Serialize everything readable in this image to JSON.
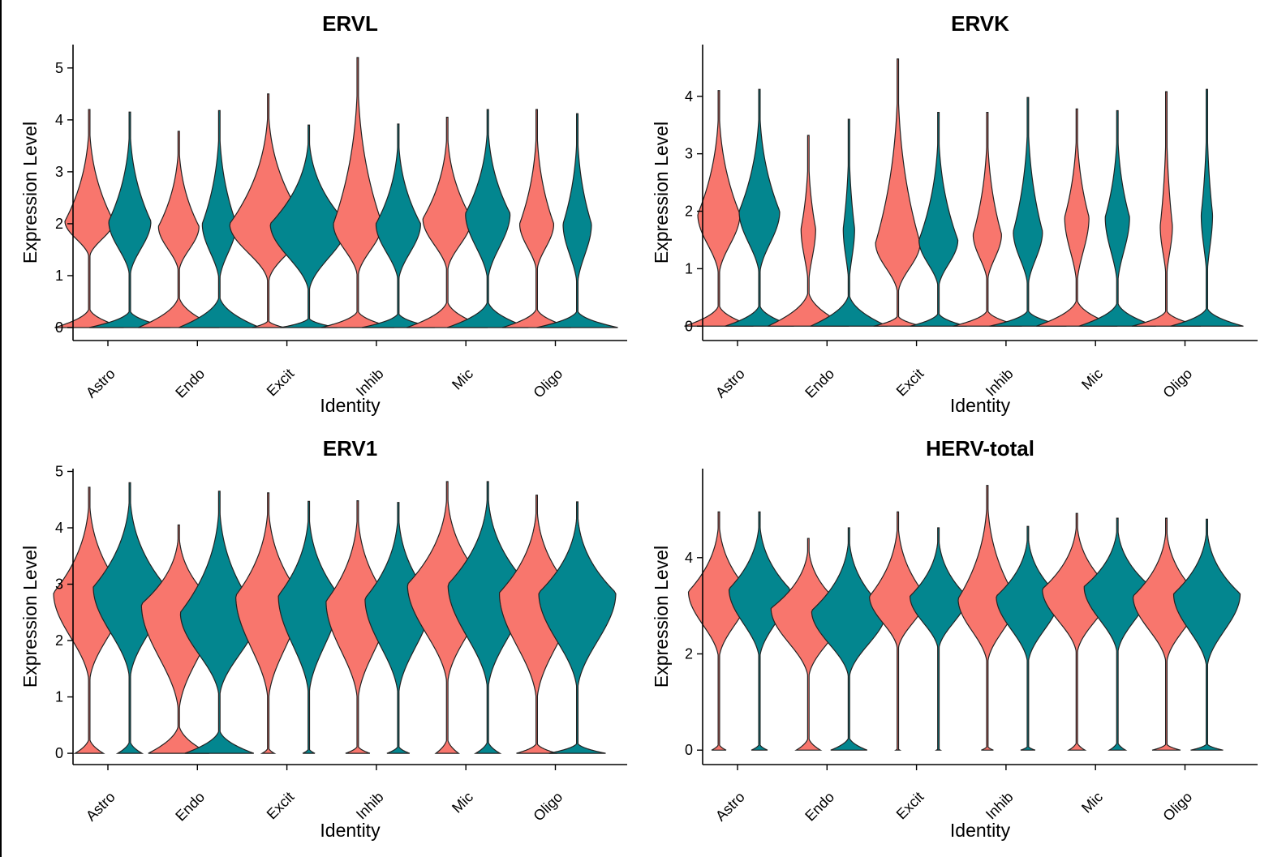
{
  "colors": {
    "group1": "#F8766D",
    "group2": "#03868F",
    "outline": "#222222"
  },
  "chart_data": [
    {
      "type": "violin",
      "title": "ERVL",
      "xlabel": "Identity",
      "ylabel": "Expression Level",
      "categories": [
        "Astro",
        "Endo",
        "Excit",
        "Inhib",
        "Mic",
        "Oligo"
      ],
      "ylim": [
        -0.25,
        5.45
      ],
      "yticks": [
        0,
        1,
        2,
        3,
        4,
        5
      ],
      "series": [
        {
          "name": "group1",
          "color": "#F8766D",
          "violins": [
            {
              "max": 4.2,
              "upperLow": 1.3,
              "mode": 2.05,
              "upperWidth": 0.6,
              "zeroWidth": 0.85,
              "zeroTop": 0.4
            },
            {
              "max": 3.78,
              "upperLow": 1.0,
              "mode": 1.95,
              "upperWidth": 0.5,
              "zeroWidth": 1.0,
              "zeroTop": 0.65
            },
            {
              "max": 4.5,
              "upperLow": 0.8,
              "mode": 2.0,
              "upperWidth": 0.95,
              "zeroWidth": 0.4,
              "zeroTop": 0.15
            },
            {
              "max": 5.2,
              "upperLow": 0.9,
              "mode": 2.0,
              "upperWidth": 0.6,
              "zeroWidth": 0.9,
              "zeroTop": 0.35
            },
            {
              "max": 4.05,
              "upperLow": 1.0,
              "mode": 2.1,
              "upperWidth": 0.6,
              "zeroWidth": 1.0,
              "zeroTop": 0.55
            },
            {
              "max": 4.2,
              "upperLow": 1.0,
              "mode": 2.0,
              "upperWidth": 0.42,
              "zeroWidth": 0.85,
              "zeroTop": 0.4
            }
          ]
        },
        {
          "name": "group2",
          "color": "#03868F",
          "violins": [
            {
              "max": 4.15,
              "upperLow": 0.9,
              "mode": 2.05,
              "upperWidth": 0.52,
              "zeroWidth": 1.0,
              "zeroTop": 0.35
            },
            {
              "max": 4.18,
              "upperLow": 0.8,
              "mode": 2.0,
              "upperWidth": 0.42,
              "zeroWidth": 1.0,
              "zeroTop": 0.65
            },
            {
              "max": 3.9,
              "upperLow": 0.6,
              "mode": 2.0,
              "upperWidth": 0.95,
              "zeroWidth": 0.7,
              "zeroTop": 0.2
            },
            {
              "max": 3.92,
              "upperLow": 0.8,
              "mode": 2.0,
              "upperWidth": 0.55,
              "zeroWidth": 0.9,
              "zeroTop": 0.3
            },
            {
              "max": 4.2,
              "upperLow": 0.8,
              "mode": 2.2,
              "upperWidth": 0.55,
              "zeroWidth": 1.0,
              "zeroTop": 0.55
            },
            {
              "max": 4.12,
              "upperLow": 0.7,
              "mode": 2.0,
              "upperWidth": 0.35,
              "zeroWidth": 1.0,
              "zeroTop": 0.35
            }
          ]
        }
      ]
    },
    {
      "type": "violin",
      "title": "ERVK",
      "xlabel": "Identity",
      "ylabel": "Expression Level",
      "categories": [
        "Astro",
        "Endo",
        "Excit",
        "Inhib",
        "Mic",
        "Oligo"
      ],
      "ylim": [
        -0.25,
        4.9
      ],
      "yticks": [
        0,
        1,
        2,
        3,
        4
      ],
      "series": [
        {
          "name": "group1",
          "color": "#F8766D",
          "violins": [
            {
              "max": 4.1,
              "upperLow": 0.8,
              "mode": 1.95,
              "upperWidth": 0.52,
              "zeroWidth": 0.85,
              "zeroTop": 0.4
            },
            {
              "max": 3.32,
              "upperLow": 0.6,
              "mode": 1.7,
              "upperWidth": 0.18,
              "zeroWidth": 1.0,
              "zeroTop": 0.65
            },
            {
              "max": 4.65,
              "upperLow": 0.5,
              "mode": 1.45,
              "upperWidth": 0.55,
              "zeroWidth": 0.6,
              "zeroTop": 0.2
            },
            {
              "max": 3.72,
              "upperLow": 0.7,
              "mode": 1.6,
              "upperWidth": 0.35,
              "zeroWidth": 0.85,
              "zeroTop": 0.3
            },
            {
              "max": 3.78,
              "upperLow": 0.6,
              "mode": 1.9,
              "upperWidth": 0.3,
              "zeroWidth": 1.0,
              "zeroTop": 0.5
            },
            {
              "max": 4.08,
              "upperLow": 0.7,
              "mode": 1.75,
              "upperWidth": 0.15,
              "zeroWidth": 0.85,
              "zeroTop": 0.3
            }
          ]
        },
        {
          "name": "group2",
          "color": "#03868F",
          "violins": [
            {
              "max": 4.12,
              "upperLow": 0.8,
              "mode": 2.0,
              "upperWidth": 0.5,
              "zeroWidth": 0.85,
              "zeroTop": 0.4
            },
            {
              "max": 3.6,
              "upperLow": 0.6,
              "mode": 1.7,
              "upperWidth": 0.14,
              "zeroWidth": 0.95,
              "zeroTop": 0.6
            },
            {
              "max": 3.72,
              "upperLow": 0.6,
              "mode": 1.5,
              "upperWidth": 0.48,
              "zeroWidth": 0.7,
              "zeroTop": 0.25
            },
            {
              "max": 3.98,
              "upperLow": 0.6,
              "mode": 1.65,
              "upperWidth": 0.36,
              "zeroWidth": 0.95,
              "zeroTop": 0.3
            },
            {
              "max": 3.75,
              "upperLow": 0.6,
              "mode": 1.9,
              "upperWidth": 0.3,
              "zeroWidth": 0.95,
              "zeroTop": 0.45
            },
            {
              "max": 4.12,
              "upperLow": 0.7,
              "mode": 1.95,
              "upperWidth": 0.14,
              "zeroWidth": 0.9,
              "zeroTop": 0.35
            }
          ]
        }
      ]
    },
    {
      "type": "violin",
      "title": "ERV1",
      "xlabel": "Identity",
      "ylabel": "Expression Level",
      "categories": [
        "Astro",
        "Endo",
        "Excit",
        "Inhib",
        "Mic",
        "Oligo"
      ],
      "ylim": [
        -0.2,
        5.05
      ],
      "yticks": [
        0,
        1,
        2,
        3,
        4,
        5
      ],
      "series": [
        {
          "name": "group1",
          "color": "#F8766D",
          "violins": [
            {
              "max": 4.72,
              "upperLow": 1.15,
              "mode": 2.85,
              "upperWidth": 0.88,
              "zeroWidth": 0.35,
              "zeroTop": 0.3
            },
            {
              "max": 4.05,
              "upperLow": 0.6,
              "mode": 2.65,
              "upperWidth": 0.92,
              "zeroWidth": 0.75,
              "zeroTop": 0.55
            },
            {
              "max": 4.62,
              "upperLow": 0.8,
              "mode": 2.8,
              "upperWidth": 0.8,
              "zeroWidth": 0.15,
              "zeroTop": 0.12
            },
            {
              "max": 4.48,
              "upperLow": 0.8,
              "mode": 2.7,
              "upperWidth": 0.78,
              "zeroWidth": 0.3,
              "zeroTop": 0.15
            },
            {
              "max": 4.82,
              "upperLow": 1.1,
              "mode": 3.0,
              "upperWidth": 0.98,
              "zeroWidth": 0.28,
              "zeroTop": 0.3
            },
            {
              "max": 4.58,
              "upperLow": 0.8,
              "mode": 2.85,
              "upperWidth": 0.92,
              "zeroWidth": 0.5,
              "zeroTop": 0.2
            }
          ]
        },
        {
          "name": "group2",
          "color": "#03868F",
          "violins": [
            {
              "max": 4.8,
              "upperLow": 1.2,
              "mode": 2.95,
              "upperWidth": 0.9,
              "zeroWidth": 0.3,
              "zeroTop": 0.25
            },
            {
              "max": 4.65,
              "upperLow": 0.9,
              "mode": 2.5,
              "upperWidth": 0.96,
              "zeroWidth": 0.85,
              "zeroTop": 0.45
            },
            {
              "max": 4.47,
              "upperLow": 0.9,
              "mode": 2.8,
              "upperWidth": 0.75,
              "zeroWidth": 0.15,
              "zeroTop": 0.1
            },
            {
              "max": 4.45,
              "upperLow": 0.9,
              "mode": 2.75,
              "upperWidth": 0.82,
              "zeroWidth": 0.28,
              "zeroTop": 0.15
            },
            {
              "max": 4.82,
              "upperLow": 1.0,
              "mode": 3.0,
              "upperWidth": 0.98,
              "zeroWidth": 0.3,
              "zeroTop": 0.25
            },
            {
              "max": 4.46,
              "upperLow": 1.0,
              "mode": 2.85,
              "upperWidth": 0.95,
              "zeroWidth": 0.7,
              "zeroTop": 0.2
            }
          ]
        }
      ]
    },
    {
      "type": "violin",
      "title": "HERV-total",
      "xlabel": "Identity",
      "ylabel": "Expression Level",
      "categories": [
        "Astro",
        "Endo",
        "Excit",
        "Inhib",
        "Mic",
        "Oligo"
      ],
      "ylim": [
        -0.3,
        5.85
      ],
      "yticks": [
        0,
        2,
        4
      ],
      "series": [
        {
          "name": "group1",
          "color": "#F8766D",
          "violins": [
            {
              "max": 4.95,
              "upperLow": 1.8,
              "mode": 3.3,
              "upperWidth": 0.75,
              "zeroWidth": 0.18,
              "zeroTop": 0.15
            },
            {
              "max": 4.4,
              "upperLow": 1.4,
              "mode": 2.95,
              "upperWidth": 0.92,
              "zeroWidth": 0.3,
              "zeroTop": 0.3
            },
            {
              "max": 4.95,
              "upperLow": 2.0,
              "mode": 3.2,
              "upperWidth": 0.7,
              "zeroWidth": 0.05,
              "zeroTop": 0.05
            },
            {
              "max": 5.5,
              "upperLow": 1.7,
              "mode": 3.15,
              "upperWidth": 0.72,
              "zeroWidth": 0.15,
              "zeroTop": 0.1
            },
            {
              "max": 4.92,
              "upperLow": 1.9,
              "mode": 3.35,
              "upperWidth": 0.85,
              "zeroWidth": 0.2,
              "zeroTop": 0.2
            },
            {
              "max": 4.82,
              "upperLow": 1.7,
              "mode": 3.2,
              "upperWidth": 0.82,
              "zeroWidth": 0.35,
              "zeroTop": 0.15
            }
          ]
        },
        {
          "name": "group2",
          "color": "#03868F",
          "violins": [
            {
              "max": 4.95,
              "upperLow": 1.8,
              "mode": 3.35,
              "upperWidth": 0.75,
              "zeroWidth": 0.2,
              "zeroTop": 0.15
            },
            {
              "max": 4.62,
              "upperLow": 1.4,
              "mode": 2.9,
              "upperWidth": 0.92,
              "zeroWidth": 0.45,
              "zeroTop": 0.3
            },
            {
              "max": 4.62,
              "upperLow": 2.0,
              "mode": 3.2,
              "upperWidth": 0.7,
              "zeroWidth": 0.05,
              "zeroTop": 0.05
            },
            {
              "max": 4.65,
              "upperLow": 1.7,
              "mode": 3.2,
              "upperWidth": 0.78,
              "zeroWidth": 0.18,
              "zeroTop": 0.1
            },
            {
              "max": 4.82,
              "upperLow": 1.9,
              "mode": 3.4,
              "upperWidth": 0.82,
              "zeroWidth": 0.2,
              "zeroTop": 0.2
            },
            {
              "max": 4.8,
              "upperLow": 1.6,
              "mode": 3.25,
              "upperWidth": 0.82,
              "zeroWidth": 0.4,
              "zeroTop": 0.15
            }
          ]
        }
      ]
    }
  ]
}
